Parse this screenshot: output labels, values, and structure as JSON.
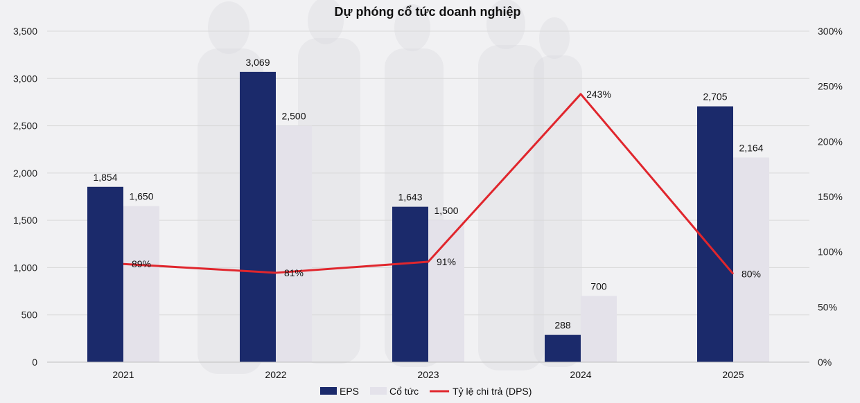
{
  "chart_data": {
    "type": "bar",
    "title": "Dự phóng cổ tức doanh nghiệp",
    "categories": [
      "2021",
      "2022",
      "2023",
      "2024",
      "2025"
    ],
    "series": [
      {
        "name": "EPS",
        "type": "bar",
        "axis": "left",
        "color": "#1b2a6b",
        "values": [
          1854,
          3069,
          1643,
          288,
          2705
        ],
        "labels": [
          "1,854",
          "3,069",
          "1,643",
          "288",
          "2,705"
        ]
      },
      {
        "name": "Cổ tức",
        "type": "bar",
        "axis": "left",
        "color": "#e4e2ea",
        "values": [
          1650,
          2500,
          1500,
          700,
          2164
        ],
        "labels": [
          "1,650",
          "2,500",
          "1,500",
          "700",
          "2,164"
        ]
      },
      {
        "name": "Tỷ lệ chi trả (DPS)",
        "type": "line",
        "axis": "right",
        "color": "#e0262d",
        "values": [
          89,
          81,
          91,
          243,
          80
        ],
        "labels": [
          "89%",
          "81%",
          "91%",
          "243%",
          "80%"
        ]
      }
    ],
    "y_left": {
      "ylim": [
        0,
        3500
      ],
      "ticks": [
        "0",
        "500",
        "1,000",
        "1,500",
        "2,000",
        "2,500",
        "3,000",
        "3,500"
      ]
    },
    "y_right": {
      "ylim": [
        0,
        300
      ],
      "ticks": [
        "0%",
        "50%",
        "100%",
        "150%",
        "200%",
        "250%",
        "300%"
      ]
    },
    "grid": true,
    "legend_position": "bottom-center"
  }
}
